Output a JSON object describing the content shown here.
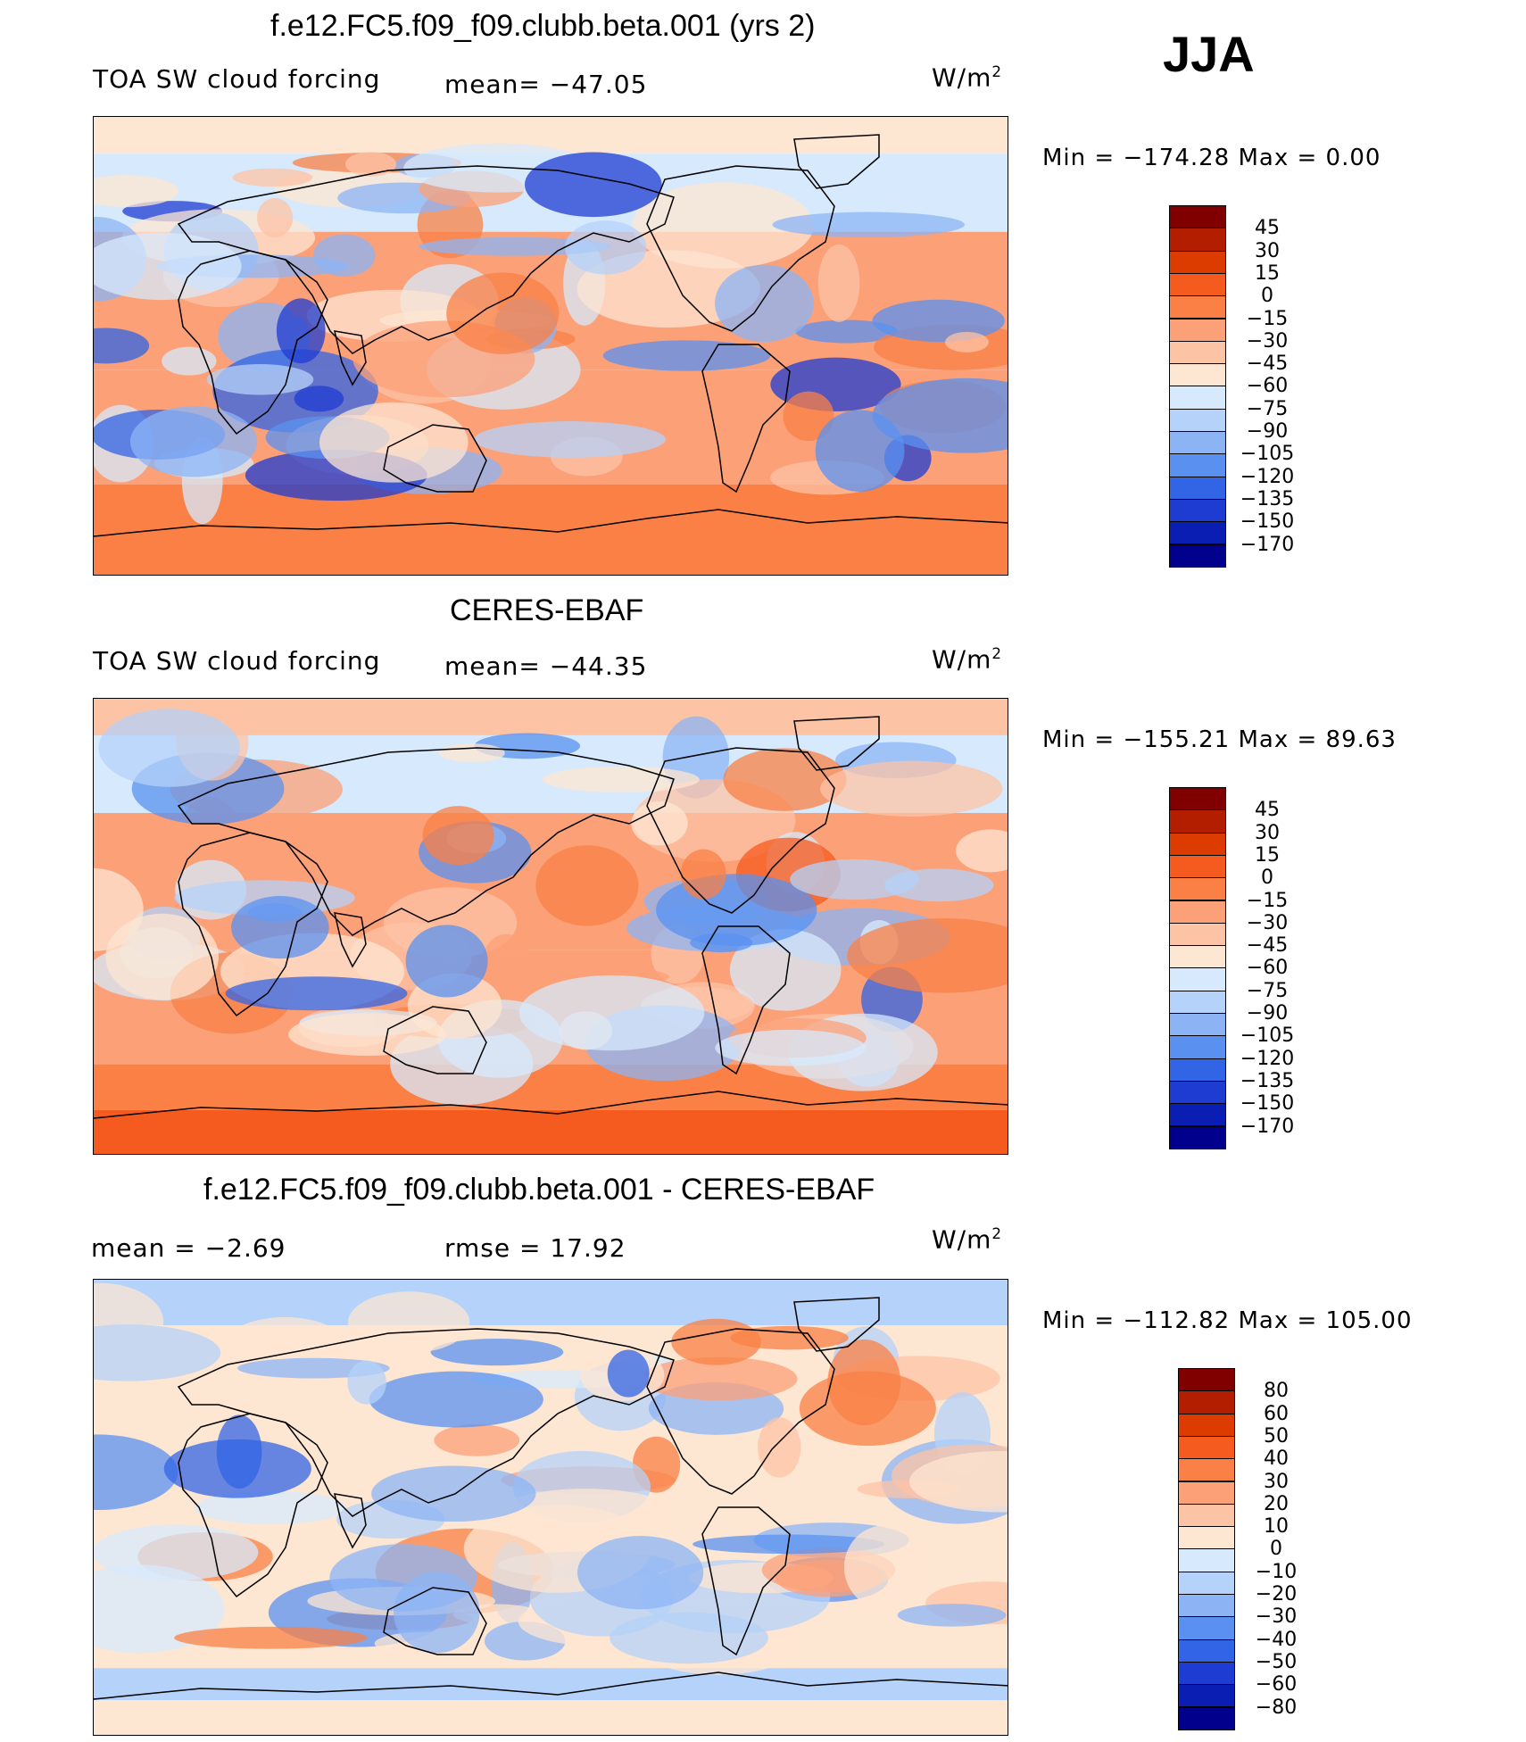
{
  "season": "JJA",
  "panels": [
    {
      "title": "f.e12.FC5.f09_f09.clubb.beta.001 (yrs 2)",
      "left_text": "TOA SW cloud forcing",
      "mid_text": "mean= −47.05",
      "units": "W/m",
      "units_exp": "2",
      "minmax": "Min = −174.28 Max =   0.00"
    },
    {
      "title": "CERES-EBAF",
      "left_text": "TOA SW cloud forcing",
      "mid_text": "mean= −44.35",
      "units": "W/m",
      "units_exp": "2",
      "minmax": "Min = −155.21 Max =  89.63"
    },
    {
      "title": "f.e12.FC5.f09_f09.clubb.beta.001 - CERES-EBAF",
      "left_text": "mean =   −2.69",
      "mid_text": "rmse =   17.92",
      "units": "W/m",
      "units_exp": "2",
      "minmax": "Min = −112.82 Max = 105.00"
    }
  ],
  "chart_data": [
    {
      "type": "heatmap",
      "title": "f.e12.FC5.f09_f09.clubb.beta.001 (yrs 2)",
      "variable": "TOA SW cloud forcing",
      "units": "W/m2",
      "mean": -47.05,
      "min": -174.28,
      "max": 0.0,
      "levels": [
        "45",
        "30",
        "15",
        "0",
        "−15",
        "−30",
        "−45",
        "−60",
        "−75",
        "−90",
        "−105",
        "−120",
        "−135",
        "−150",
        "−170"
      ],
      "colors": [
        "#800000",
        "#b41e00",
        "#dc3c00",
        "#f55a1e",
        "#fa8046",
        "#fca078",
        "#fdc3a5",
        "#fde6d2",
        "#d7e9fc",
        "#b4d2fa",
        "#8cb4f5",
        "#5a91f0",
        "#3264e6",
        "#1e3cd2",
        "#0a1eb4",
        "#00008c"
      ]
    },
    {
      "type": "heatmap",
      "title": "CERES-EBAF",
      "variable": "TOA SW cloud forcing",
      "units": "W/m2",
      "mean": -44.35,
      "min": -155.21,
      "max": 89.63,
      "levels": [
        "45",
        "30",
        "15",
        "0",
        "−15",
        "−30",
        "−45",
        "−60",
        "−75",
        "−90",
        "−105",
        "−120",
        "−135",
        "−150",
        "−170"
      ],
      "colors": [
        "#800000",
        "#b41e00",
        "#dc3c00",
        "#f55a1e",
        "#fa8046",
        "#fca078",
        "#fdc3a5",
        "#fde6d2",
        "#d7e9fc",
        "#b4d2fa",
        "#8cb4f5",
        "#5a91f0",
        "#3264e6",
        "#1e3cd2",
        "#0a1eb4",
        "#00008c"
      ]
    },
    {
      "type": "heatmap",
      "title": "f.e12.FC5.f09_f09.clubb.beta.001 - CERES-EBAF",
      "units": "W/m2",
      "mean": -2.69,
      "rmse": 17.92,
      "min": -112.82,
      "max": 105.0,
      "levels": [
        "80",
        "60",
        "50",
        "40",
        "30",
        "20",
        "10",
        "0",
        "−10",
        "−20",
        "−30",
        "−40",
        "−50",
        "−60",
        "−80"
      ],
      "colors": [
        "#800000",
        "#b41e00",
        "#dc3c00",
        "#f55a1e",
        "#fa8046",
        "#fca078",
        "#fdc3a5",
        "#fde6d2",
        "#d7e9fc",
        "#b4d2fa",
        "#8cb4f5",
        "#5a91f0",
        "#3264e6",
        "#1e3cd2",
        "#0a1eb4",
        "#00008c"
      ]
    }
  ]
}
